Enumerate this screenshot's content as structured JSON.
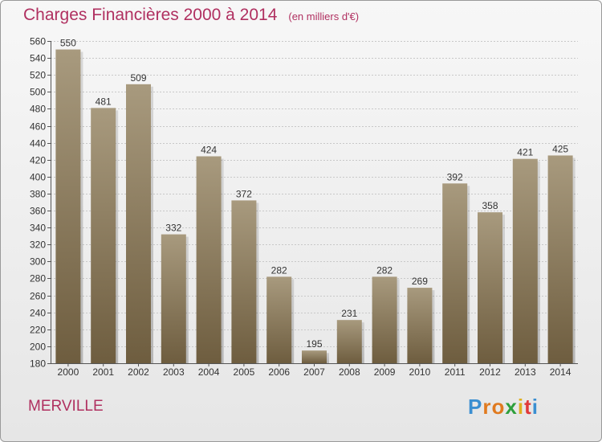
{
  "header": {
    "title": "Charges Financières 2000 à 2014",
    "subtitle": "(en milliers d'€)"
  },
  "footer": {
    "commune": "MERVILLE",
    "logo_text": "Proxiti"
  },
  "colors": {
    "title": "#b03060",
    "bar_top": "#a89a7e",
    "bar_bottom": "#6e5d3f",
    "logo_letters": [
      "#3b8fd1",
      "#e07a1f",
      "#e07a1f",
      "#2e9f3c",
      "#e0b01f",
      "#e03a3a",
      "#3b8fd1"
    ]
  },
  "chart_data": {
    "type": "bar",
    "title": "Charges Financières 2000 à 2014",
    "subtitle": "(en milliers d'€)",
    "categories": [
      "2000",
      "2001",
      "2002",
      "2003",
      "2004",
      "2005",
      "2006",
      "2007",
      "2008",
      "2009",
      "2010",
      "2011",
      "2012",
      "2013",
      "2014"
    ],
    "values": [
      550,
      481,
      509,
      332,
      424,
      372,
      282,
      195,
      231,
      282,
      269,
      392,
      358,
      421,
      425
    ],
    "ylim": [
      180,
      560
    ],
    "yticks": [
      180,
      200,
      220,
      240,
      260,
      280,
      300,
      320,
      340,
      360,
      380,
      400,
      420,
      440,
      460,
      480,
      500,
      520,
      540,
      560
    ],
    "grid": true,
    "data_labels": true
  }
}
